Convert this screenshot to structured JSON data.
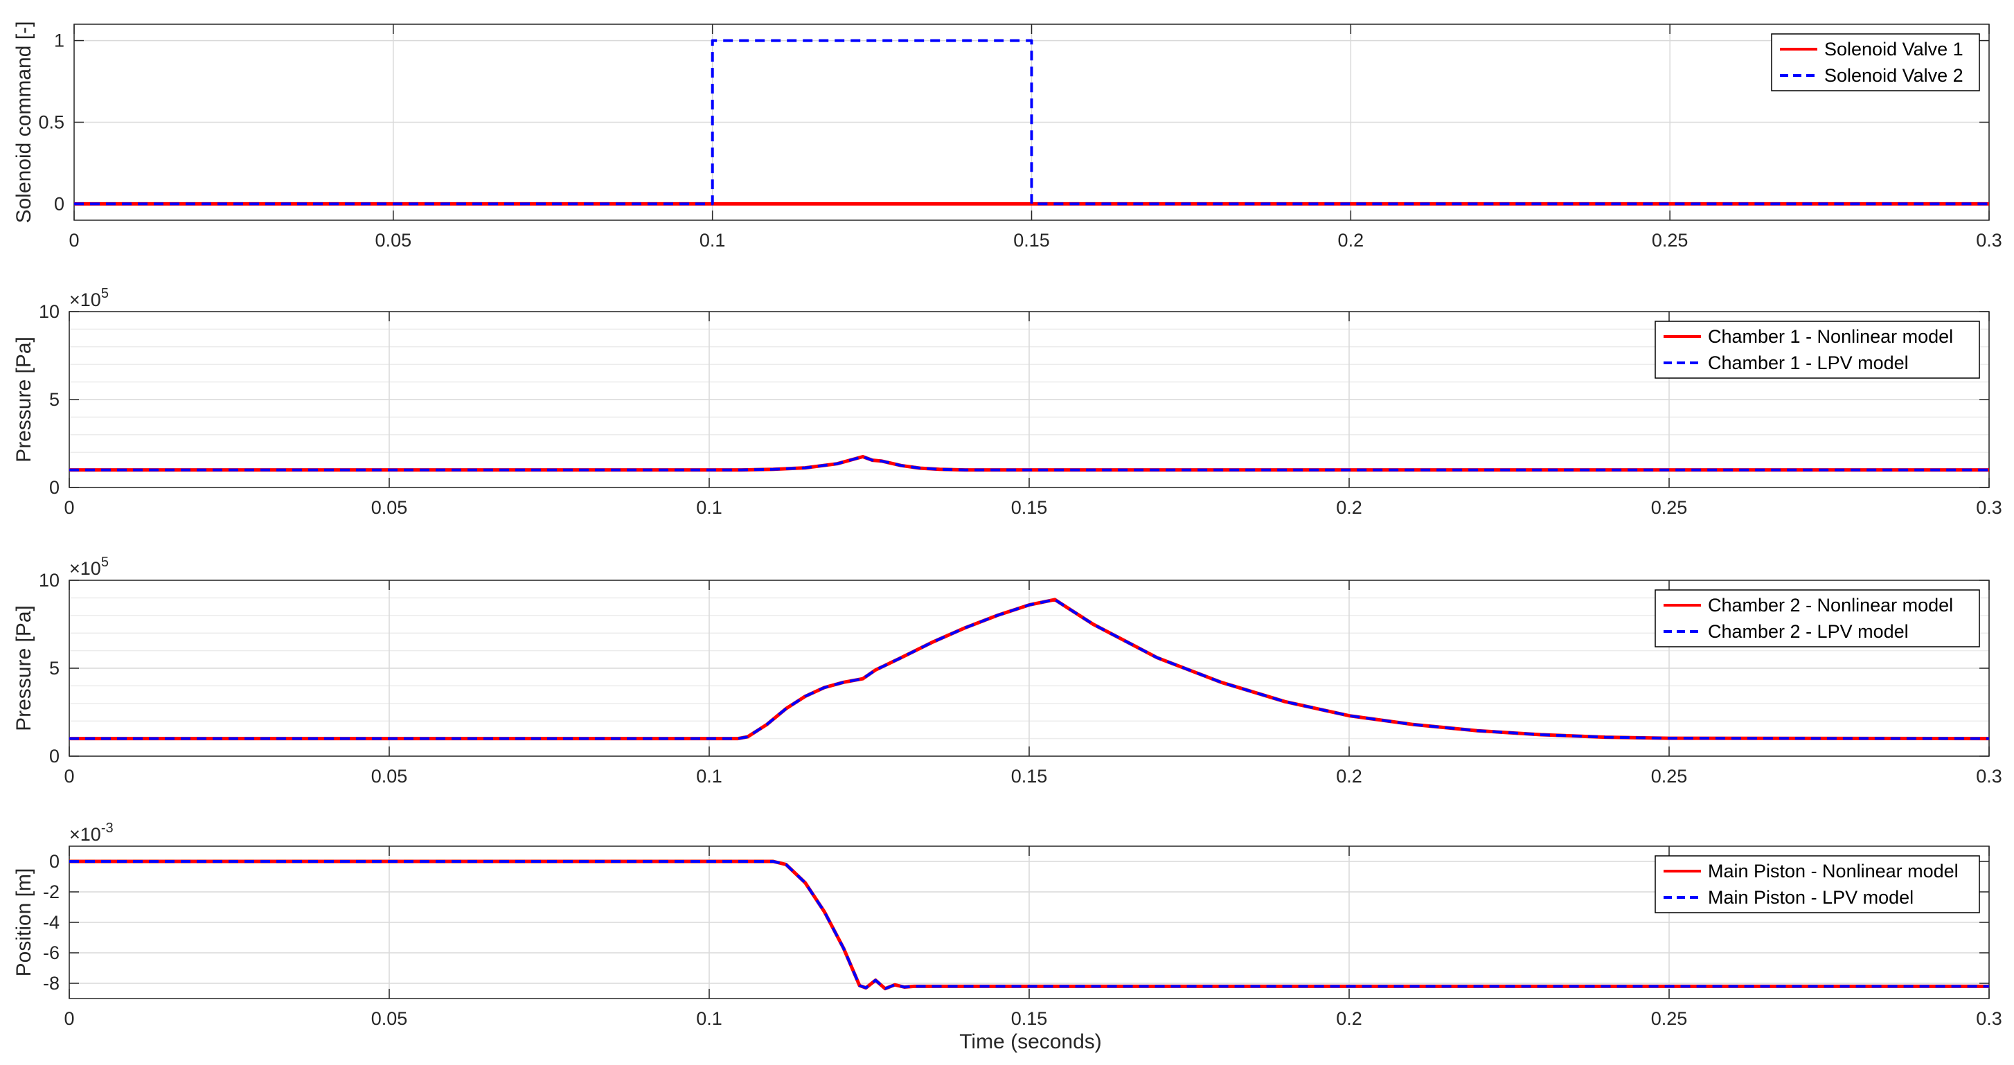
{
  "figure": {
    "xlabel": "Time (seconds)"
  },
  "colors": {
    "series1": "#ff0000",
    "series2": "#0000ff",
    "grid": "#d9d9d9",
    "axis": "#262626"
  },
  "chart_data": [
    {
      "type": "line",
      "ylabel": "Solenoid command [-]",
      "exponent_label": "",
      "xlim": [
        0,
        0.3
      ],
      "ylim": [
        -0.1,
        1.1
      ],
      "x_ticks": [
        0,
        0.05,
        0.1,
        0.15,
        0.2,
        0.25,
        0.3
      ],
      "x_tick_labels": [
        "0",
        "0.05",
        "0.1",
        "0.15",
        "0.2",
        "0.25",
        "0.3"
      ],
      "y_ticks": [
        0,
        0.5,
        1
      ],
      "y_tick_labels": [
        "0",
        "0.5",
        "1"
      ],
      "minor_y_grid": [],
      "legend_position": "top-right",
      "series": [
        {
          "name": "Solenoid Valve 1",
          "style": "solid",
          "x": [
            0,
            0.3
          ],
          "y": [
            0,
            0
          ]
        },
        {
          "name": "Solenoid Valve 2",
          "style": "dashed",
          "x": [
            0,
            0.1,
            0.1,
            0.15,
            0.15,
            0.3
          ],
          "y": [
            0,
            0,
            1,
            1,
            0,
            0
          ]
        }
      ]
    },
    {
      "type": "line",
      "ylabel": "Pressure [Pa]",
      "exponent_label": "×10",
      "exponent": "5",
      "xlim": [
        0,
        0.3
      ],
      "ylim": [
        0,
        10
      ],
      "x_ticks": [
        0,
        0.05,
        0.1,
        0.15,
        0.2,
        0.25,
        0.3
      ],
      "x_tick_labels": [
        "0",
        "0.05",
        "0.1",
        "0.15",
        "0.2",
        "0.25",
        "0.3"
      ],
      "y_ticks": [
        0,
        5,
        10
      ],
      "y_tick_labels": [
        "0",
        "5",
        "10"
      ],
      "minor_y_grid": [
        1,
        2,
        3,
        4,
        6,
        7,
        8,
        9
      ],
      "legend_position": "top-right",
      "series": [
        {
          "name": "Chamber 1 - Nonlinear model",
          "style": "solid",
          "x": [
            0,
            0.105,
            0.11,
            0.115,
            0.12,
            0.124,
            0.1255,
            0.127,
            0.13,
            0.133,
            0.136,
            0.14,
            0.3
          ],
          "y": [
            1.0,
            1.0,
            1.03,
            1.12,
            1.35,
            1.75,
            1.55,
            1.5,
            1.25,
            1.1,
            1.03,
            1.0,
            1.0
          ]
        },
        {
          "name": "Chamber 1 - LPV model",
          "style": "dashed",
          "x": [
            0,
            0.105,
            0.11,
            0.115,
            0.12,
            0.124,
            0.1255,
            0.127,
            0.13,
            0.133,
            0.136,
            0.14,
            0.3
          ],
          "y": [
            1.0,
            1.0,
            1.03,
            1.12,
            1.35,
            1.75,
            1.55,
            1.5,
            1.25,
            1.1,
            1.03,
            1.0,
            1.0
          ]
        }
      ]
    },
    {
      "type": "line",
      "ylabel": "Pressure [Pa]",
      "exponent_label": "×10",
      "exponent": "5",
      "xlim": [
        0,
        0.3
      ],
      "ylim": [
        0,
        10
      ],
      "x_ticks": [
        0,
        0.05,
        0.1,
        0.15,
        0.2,
        0.25,
        0.3
      ],
      "x_tick_labels": [
        "0",
        "0.05",
        "0.1",
        "0.15",
        "0.2",
        "0.25",
        "0.3"
      ],
      "y_ticks": [
        0,
        5,
        10
      ],
      "y_tick_labels": [
        "0",
        "5",
        "10"
      ],
      "minor_y_grid": [
        1,
        2,
        3,
        4,
        6,
        7,
        8,
        9
      ],
      "legend_position": "top-right",
      "series": [
        {
          "name": "Chamber 2 - Nonlinear model",
          "style": "solid",
          "x": [
            0,
            0.1045,
            0.106,
            0.109,
            0.112,
            0.115,
            0.118,
            0.121,
            0.124,
            0.126,
            0.13,
            0.135,
            0.14,
            0.145,
            0.15,
            0.154,
            0.16,
            0.17,
            0.18,
            0.19,
            0.2,
            0.21,
            0.22,
            0.23,
            0.24,
            0.25,
            0.3
          ],
          "y": [
            1.0,
            1.0,
            1.1,
            1.8,
            2.7,
            3.4,
            3.9,
            4.2,
            4.4,
            4.9,
            5.6,
            6.5,
            7.3,
            8.0,
            8.6,
            8.9,
            7.5,
            5.6,
            4.2,
            3.1,
            2.3,
            1.8,
            1.45,
            1.22,
            1.08,
            1.02,
            1.0
          ]
        },
        {
          "name": "Chamber 2 - LPV model",
          "style": "dashed",
          "x": [
            0,
            0.1045,
            0.106,
            0.109,
            0.112,
            0.115,
            0.118,
            0.121,
            0.124,
            0.126,
            0.13,
            0.135,
            0.14,
            0.145,
            0.15,
            0.154,
            0.16,
            0.17,
            0.18,
            0.19,
            0.2,
            0.21,
            0.22,
            0.23,
            0.24,
            0.25,
            0.3
          ],
          "y": [
            1.0,
            1.0,
            1.1,
            1.8,
            2.7,
            3.4,
            3.9,
            4.2,
            4.4,
            4.9,
            5.6,
            6.5,
            7.3,
            8.0,
            8.6,
            8.9,
            7.5,
            5.6,
            4.2,
            3.1,
            2.3,
            1.8,
            1.45,
            1.22,
            1.08,
            1.02,
            1.0
          ]
        }
      ]
    },
    {
      "type": "line",
      "ylabel": "Position [m]",
      "exponent_label": "×10",
      "exponent": "-3",
      "xlim": [
        0,
        0.3
      ],
      "ylim": [
        -9,
        1
      ],
      "x_ticks": [
        0,
        0.05,
        0.1,
        0.15,
        0.2,
        0.25,
        0.3
      ],
      "x_tick_labels": [
        "0",
        "0.05",
        "0.1",
        "0.15",
        "0.2",
        "0.25",
        "0.3"
      ],
      "y_ticks": [
        -8,
        -6,
        -4,
        -2,
        0
      ],
      "y_tick_labels": [
        "-8",
        "-6",
        "-4",
        "-2",
        "0"
      ],
      "minor_y_grid": [],
      "legend_position": "top-right",
      "series": [
        {
          "name": "Main Piston - Nonlinear model",
          "style": "solid",
          "x": [
            0,
            0.11,
            0.112,
            0.115,
            0.118,
            0.121,
            0.1235,
            0.1245,
            0.126,
            0.1275,
            0.129,
            0.1305,
            0.132,
            0.3
          ],
          "y": [
            0,
            0,
            -0.2,
            -1.4,
            -3.3,
            -5.7,
            -8.15,
            -8.3,
            -7.8,
            -8.35,
            -8.1,
            -8.25,
            -8.2,
            -8.2
          ]
        },
        {
          "name": "Main Piston - LPV model",
          "style": "dashed",
          "x": [
            0,
            0.11,
            0.112,
            0.115,
            0.118,
            0.121,
            0.1235,
            0.1245,
            0.126,
            0.1275,
            0.129,
            0.1305,
            0.132,
            0.3
          ],
          "y": [
            0,
            0,
            -0.2,
            -1.4,
            -3.3,
            -5.7,
            -8.15,
            -8.3,
            -7.8,
            -8.35,
            -8.1,
            -8.25,
            -8.2,
            -8.2
          ]
        }
      ]
    }
  ]
}
